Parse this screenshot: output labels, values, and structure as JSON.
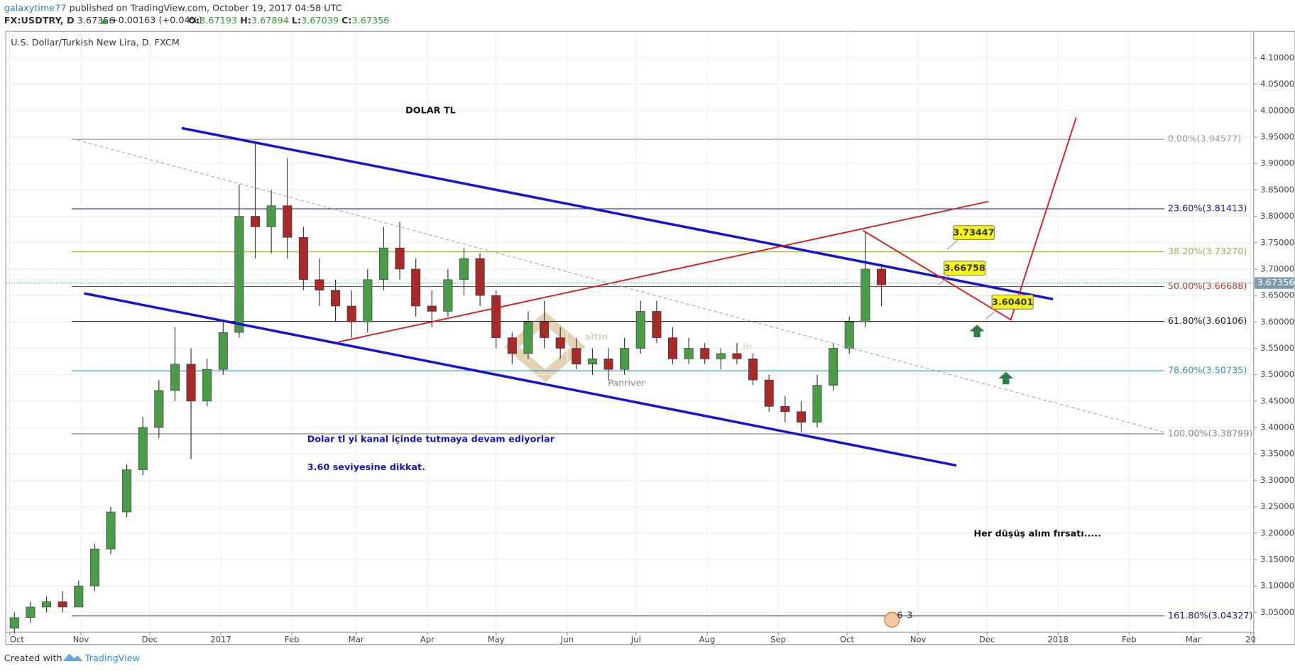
{
  "header": {
    "author": "galaxytime77",
    "published": "published on TradingView.com, October 19, 2017 04:58 UTC",
    "symbol": "FX:USDTRY, D",
    "price": "3.67356",
    "change": "+0.00163 (+0.04%)",
    "ohlc": [
      {
        "label": "O:",
        "value": "3.67193"
      },
      {
        "label": "H:",
        "value": "3.67894"
      },
      {
        "label": "L:",
        "value": "3.67039"
      },
      {
        "label": "C:",
        "value": "3.67356"
      }
    ]
  },
  "chart_data": {
    "type": "candlestick",
    "title": "U.S. Dollar/Turkish New Lira, D, FXCM",
    "x": [
      2,
      9,
      16,
      23,
      30,
      37,
      44,
      51,
      58,
      65,
      72,
      79,
      86,
      93,
      100,
      107,
      114,
      121,
      128,
      135,
      142,
      149,
      156,
      163,
      170,
      177,
      184,
      191,
      198,
      205,
      212,
      219,
      226,
      233,
      240,
      247,
      254,
      261,
      268,
      275,
      282,
      289,
      296,
      303,
      310,
      317,
      324,
      331,
      338,
      345,
      352,
      359,
      366,
      373,
      380
    ],
    "open": [
      3.02,
      3.04,
      3.06,
      3.07,
      3.06,
      3.1,
      3.17,
      3.24,
      3.32,
      3.4,
      3.47,
      3.52,
      3.45,
      3.51,
      3.58,
      3.8,
      3.78,
      3.82,
      3.76,
      3.68,
      3.66,
      3.63,
      3.6,
      3.68,
      3.74,
      3.7,
      3.63,
      3.62,
      3.68,
      3.72,
      3.65,
      3.57,
      3.54,
      3.6,
      3.57,
      3.55,
      3.52,
      3.53,
      3.51,
      3.55,
      3.62,
      3.57,
      3.53,
      3.55,
      3.53,
      3.54,
      3.53,
      3.49,
      3.44,
      3.43,
      3.41,
      3.48,
      3.55,
      3.6,
      3.7
    ],
    "high": [
      3.05,
      3.07,
      3.08,
      3.09,
      3.11,
      3.18,
      3.25,
      3.33,
      3.42,
      3.49,
      3.59,
      3.55,
      3.53,
      3.6,
      3.86,
      3.94,
      3.85,
      3.91,
      3.78,
      3.72,
      3.68,
      3.66,
      3.7,
      3.78,
      3.79,
      3.72,
      3.66,
      3.7,
      3.74,
      3.73,
      3.66,
      3.58,
      3.62,
      3.64,
      3.59,
      3.57,
      3.55,
      3.55,
      3.57,
      3.64,
      3.64,
      3.59,
      3.57,
      3.56,
      3.55,
      3.56,
      3.54,
      3.5,
      3.46,
      3.45,
      3.5,
      3.56,
      3.61,
      3.77,
      3.71
    ],
    "low": [
      3.01,
      3.03,
      3.05,
      3.05,
      3.06,
      3.09,
      3.16,
      3.23,
      3.31,
      3.38,
      3.45,
      3.34,
      3.44,
      3.5,
      3.57,
      3.72,
      3.73,
      3.72,
      3.66,
      3.63,
      3.6,
      3.57,
      3.58,
      3.66,
      3.68,
      3.61,
      3.59,
      3.61,
      3.65,
      3.63,
      3.55,
      3.52,
      3.53,
      3.55,
      3.53,
      3.51,
      3.5,
      3.49,
      3.5,
      3.54,
      3.56,
      3.52,
      3.52,
      3.52,
      3.51,
      3.52,
      3.48,
      3.43,
      3.41,
      3.39,
      3.4,
      3.47,
      3.54,
      3.59,
      3.63
    ],
    "close": [
      3.04,
      3.06,
      3.07,
      3.06,
      3.1,
      3.17,
      3.24,
      3.32,
      3.4,
      3.47,
      3.52,
      3.45,
      3.51,
      3.58,
      3.8,
      3.78,
      3.82,
      3.76,
      3.68,
      3.66,
      3.63,
      3.6,
      3.68,
      3.74,
      3.7,
      3.63,
      3.62,
      3.68,
      3.72,
      3.65,
      3.57,
      3.54,
      3.6,
      3.57,
      3.55,
      3.52,
      3.53,
      3.51,
      3.55,
      3.62,
      3.57,
      3.53,
      3.55,
      3.53,
      3.54,
      3.53,
      3.49,
      3.44,
      3.43,
      3.41,
      3.48,
      3.55,
      3.6,
      3.7,
      3.67
    ],
    "up_color": "#4a9a4a",
    "down_color": "#a52a2a",
    "xlim": [
      -1.4,
      542.3
    ],
    "xticks": [
      {
        "value": 0,
        "label": "Oct"
      },
      {
        "value": 31,
        "label": "Nov"
      },
      {
        "value": 61,
        "label": "Dec"
      },
      {
        "value": 92,
        "label": "2017"
      },
      {
        "value": 123,
        "label": "Feb"
      },
      {
        "value": 151,
        "label": "Mar"
      },
      {
        "value": 182,
        "label": "Apr"
      },
      {
        "value": 212,
        "label": "May"
      },
      {
        "value": 243,
        "label": "Jun"
      },
      {
        "value": 273,
        "label": "Jul"
      },
      {
        "value": 304,
        "label": "Aug"
      },
      {
        "value": 335,
        "label": "Sep"
      },
      {
        "value": 365,
        "label": "Oct"
      },
      {
        "value": 396,
        "label": "Nov"
      },
      {
        "value": 426,
        "label": "Dec"
      },
      {
        "value": 457,
        "label": "2018"
      },
      {
        "value": 488,
        "label": "Feb"
      },
      {
        "value": 516,
        "label": "Mar"
      },
      {
        "value": 541,
        "label": "20"
      }
    ],
    "ylim": [
      3.0124,
      4.1501
    ],
    "yticks": [
      {
        "value": 3.05,
        "label": "3.05000"
      },
      {
        "value": 3.1,
        "label": "3.10000"
      },
      {
        "value": 3.15,
        "label": "3.15000"
      },
      {
        "value": 3.2,
        "label": "3.20000"
      },
      {
        "value": 3.25,
        "label": "3.25000"
      },
      {
        "value": 3.3,
        "label": "3.30000"
      },
      {
        "value": 3.35,
        "label": "3.35000"
      },
      {
        "value": 3.4,
        "label": "3.40000"
      },
      {
        "value": 3.45,
        "label": "3.45000"
      },
      {
        "value": 3.5,
        "label": "3.50000"
      },
      {
        "value": 3.55,
        "label": "3.55000"
      },
      {
        "value": 3.6,
        "label": "3.60000"
      },
      {
        "value": 3.65,
        "label": "3.65000"
      },
      {
        "value": 3.7,
        "label": "3.70000"
      },
      {
        "value": 3.75,
        "label": "3.75000"
      },
      {
        "value": 3.8,
        "label": "3.80000"
      },
      {
        "value": 3.85,
        "label": "3.85000"
      },
      {
        "value": 3.9,
        "label": "3.90000"
      },
      {
        "value": 3.95,
        "label": "3.95000"
      },
      {
        "value": 4.0,
        "label": "4.00000"
      },
      {
        "value": 4.05,
        "label": "4.05000"
      },
      {
        "value": 4.1,
        "label": "4.10000"
      }
    ],
    "grid": true,
    "last_price": 3.67356,
    "fib_levels": [
      {
        "value": 3.94577,
        "label": "0.00%(3.94577)",
        "color": "#999999"
      },
      {
        "value": 3.81413,
        "label": "23.60%(3.81413)",
        "color": "#1a237e"
      },
      {
        "value": 3.7327,
        "label": "38.20%(3.73270)",
        "color": "#9ab84a"
      },
      {
        "value": 3.66688,
        "label": "50.00%(3.66688)",
        "color": "#c0392b"
      },
      {
        "value": 3.60106,
        "label": "61.80%(3.60106)",
        "color": "#222222"
      },
      {
        "value": 3.50735,
        "label": "78.60%(3.50735)",
        "color": "#3d8fa8"
      },
      {
        "value": 3.38799,
        "label": "100.00%(3.38799)",
        "color": "#888888"
      },
      {
        "value": 3.04327,
        "label": "161.80%(3.04327)",
        "color": "#1a237e"
      }
    ],
    "drawings": [
      {
        "color": "#1515d0",
        "width": 3,
        "dash": false,
        "x": [
          74.9,
          454.8
        ],
        "y": [
          3.967,
          3.643
        ]
      },
      {
        "color": "#1515d0",
        "width": 3,
        "dash": false,
        "x": [
          32.4,
          412.7
        ],
        "y": [
          3.654,
          3.328
        ]
      },
      {
        "color": "#e01818",
        "width": 1.6,
        "dash": false,
        "x": [
          143.3,
          426.7
        ],
        "y": [
          3.562,
          3.828
        ]
      },
      {
        "color": "#e01818",
        "width": 1.6,
        "dash": false,
        "x": [
          372,
          436.4,
          464.9
        ],
        "y": [
          3.773,
          3.604,
          3.987
        ]
      },
      {
        "color": "#aaaaaa",
        "width": 1,
        "dash": true,
        "x": [
          27,
          503.4
        ],
        "y": [
          3.947,
          3.391
        ]
      }
    ],
    "callouts": [
      3.73447,
      3.66758,
      3.60401
    ],
    "annotations": [
      "DOLAR TL",
      "Dolar tl yi kanal içinde tutmaya devam ediyorlar",
      "3.60 seviyesine dikkat.",
      "Her düşüş alım fırsatı....."
    ],
    "watermark": {
      "name": "altin",
      "suffix": ".in",
      "sub": "Panriver"
    },
    "events": [
      "6",
      "3"
    ]
  },
  "footer": {
    "created": "Created with",
    "brand": "TradingView"
  }
}
